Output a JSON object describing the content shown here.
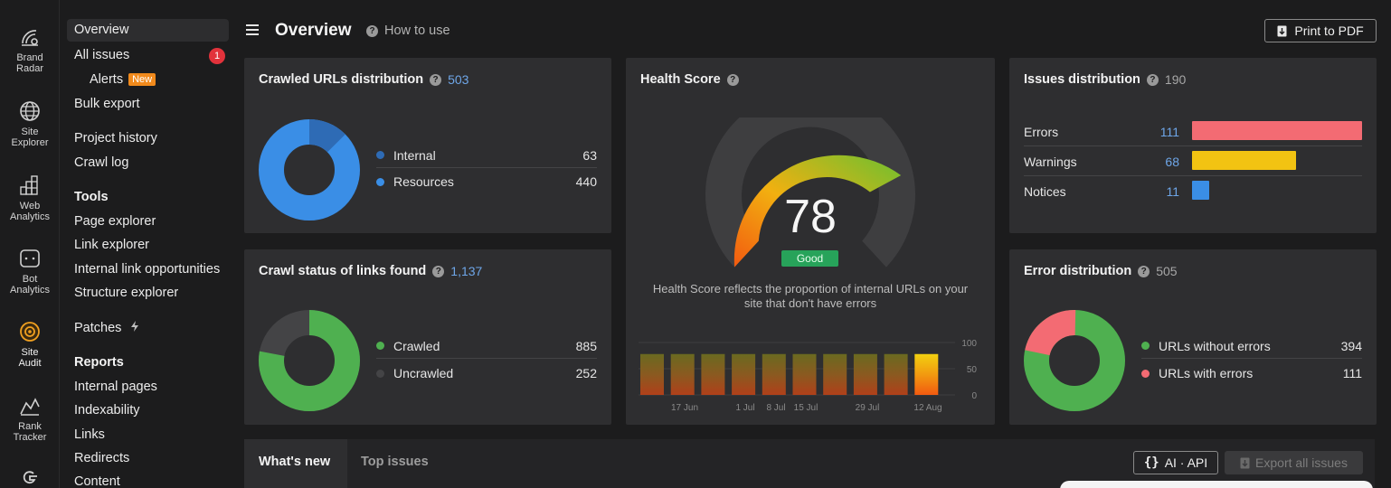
{
  "rail": [
    {
      "label": "Brand Radar",
      "icon": "brand-radar-icon"
    },
    {
      "label": "Site Explorer",
      "icon": "globe-icon"
    },
    {
      "label": "Web Analytics",
      "icon": "grid-chart-icon"
    },
    {
      "label": "Bot Analytics",
      "icon": "bot-icon"
    },
    {
      "label": "Site Audit",
      "icon": "site-audit-icon"
    },
    {
      "label": "Rank Tracker",
      "icon": "rank-tracker-icon"
    },
    {
      "label": "",
      "icon": "google-icon"
    }
  ],
  "nav": {
    "overview": "Overview",
    "all_issues": "All issues",
    "all_issues_count": "1",
    "alerts": "Alerts",
    "alerts_badge": "New",
    "bulk_export": "Bulk export",
    "project_history": "Project history",
    "crawl_log": "Crawl log",
    "tools_heading": "Tools",
    "page_explorer": "Page explorer",
    "link_explorer": "Link explorer",
    "internal_link_opportunities": "Internal link opportunities",
    "structure_explorer": "Structure explorer",
    "patches": "Patches",
    "reports_heading": "Reports",
    "internal_pages": "Internal pages",
    "indexability": "Indexability",
    "links": "Links",
    "redirects": "Redirects",
    "content": "Content"
  },
  "header": {
    "title": "Overview",
    "how_to_use": "How to use",
    "print_pdf": "Print to PDF"
  },
  "crawled_urls": {
    "title": "Crawled URLs distribution",
    "total": "503",
    "items": [
      {
        "label": "Internal",
        "value": "63",
        "color": "#2e6bb5"
      },
      {
        "label": "Resources",
        "value": "440",
        "color": "#3a8ee6"
      }
    ]
  },
  "crawl_status": {
    "title": "Crawl status of links found",
    "total": "1,137",
    "items": [
      {
        "label": "Crawled",
        "value": "885",
        "color": "#4fb050"
      },
      {
        "label": "Uncrawled",
        "value": "252",
        "color": "#444446"
      }
    ]
  },
  "health": {
    "title": "Health Score",
    "score": "78",
    "status": "Good",
    "description": "Health Score reflects the proportion of internal URLs on your site that don't have errors",
    "y_ticks": [
      "100",
      "50",
      "0"
    ],
    "x_labels": [
      "17 Jun",
      "1 Jul",
      "8 Jul",
      "15 Jul",
      "29 Jul",
      "12 Aug"
    ]
  },
  "chart_data": {
    "type": "bar",
    "title": "Health Score",
    "ylim": [
      0,
      100
    ],
    "y_ticks": [
      0,
      50,
      100
    ],
    "x_tick_labels": [
      "17 Jun",
      "1 Jul",
      "8 Jul",
      "15 Jul",
      "29 Jul",
      "12 Aug"
    ],
    "values": [
      78,
      78,
      78,
      78,
      78,
      78,
      78,
      78,
      78,
      78
    ],
    "grid": true
  },
  "issues_distribution": {
    "title": "Issues distribution",
    "total": "190",
    "items": [
      {
        "label": "Errors",
        "value": "111",
        "color": "#f36b73"
      },
      {
        "label": "Warnings",
        "value": "68",
        "color": "#f2c312"
      },
      {
        "label": "Notices",
        "value": "11",
        "color": "#3a8ee6"
      }
    ]
  },
  "error_distribution": {
    "title": "Error distribution",
    "total": "505",
    "items": [
      {
        "label": "URLs without errors",
        "value": "394",
        "color": "#4fb050"
      },
      {
        "label": "URLs with errors",
        "value": "111",
        "color": "#f36b73"
      }
    ]
  },
  "bottom": {
    "tab_whats_new": "What's new",
    "tab_top_issues": "Top issues",
    "ai_api": "AI · API",
    "export_all": "Export all issues"
  }
}
